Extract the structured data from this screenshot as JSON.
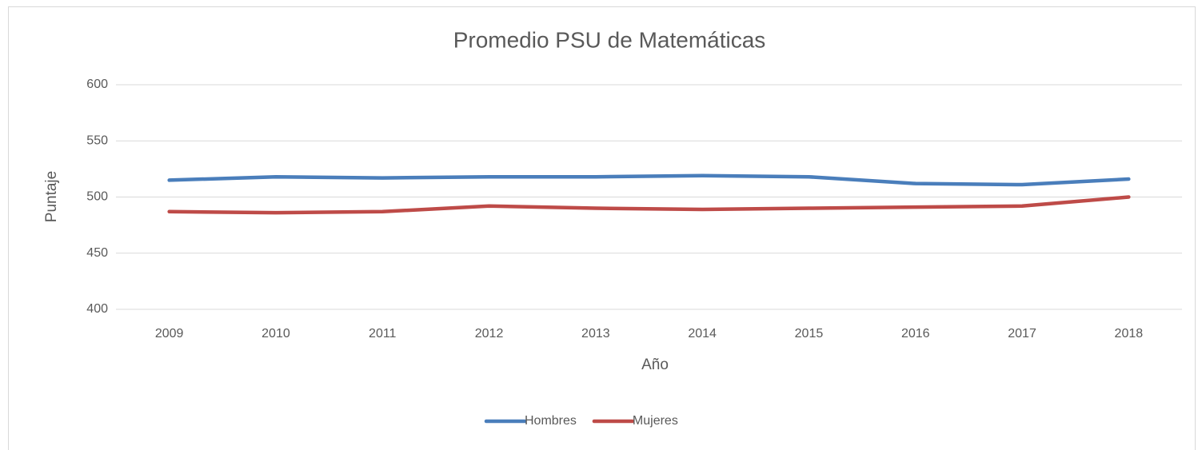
{
  "chart_data": {
    "type": "line",
    "title": "Promedio PSU de Matemáticas",
    "x_label": "Año",
    "y_label": "Puntaje",
    "categories": [
      "2009",
      "2010",
      "2011",
      "2012",
      "2013",
      "2014",
      "2015",
      "2016",
      "2017",
      "2018"
    ],
    "series": [
      {
        "name": "Hombres",
        "color": "#4a7ebb",
        "values": [
          515,
          518,
          517,
          518,
          518,
          519,
          518,
          512,
          511,
          516
        ]
      },
      {
        "name": "Mujeres",
        "color": "#be4b48",
        "values": [
          487,
          486,
          487,
          492,
          490,
          489,
          490,
          491,
          492,
          500
        ]
      }
    ],
    "ylim": [
      400,
      600
    ],
    "yticks": [
      400,
      450,
      500,
      550,
      600
    ],
    "grid": true,
    "legend": "bottom"
  }
}
